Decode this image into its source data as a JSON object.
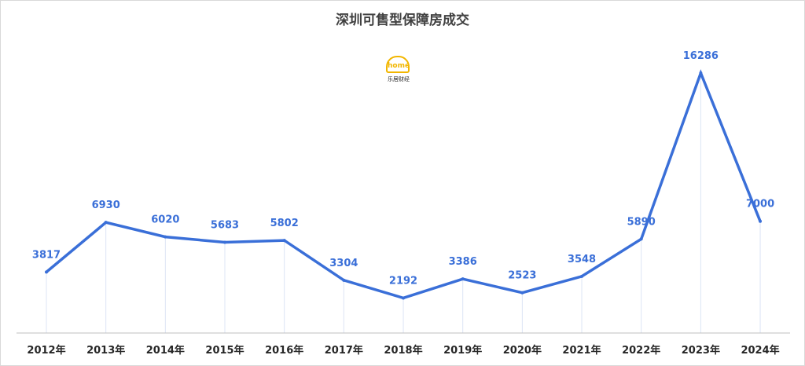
{
  "chart_data": {
    "type": "line",
    "title": "深圳可售型保障房成交",
    "categories": [
      "2012年",
      "2013年",
      "2014年",
      "2015年",
      "2016年",
      "2017年",
      "2018年",
      "2019年",
      "2020年",
      "2021年",
      "2022年",
      "2023年",
      "2024年"
    ],
    "series": [
      {
        "values": [
          3817,
          6930,
          6020,
          5683,
          5802,
          3304,
          2192,
          3386,
          2523,
          3548,
          5890,
          16286,
          7000
        ],
        "labels": [
          "3817",
          "6930",
          "6020",
          "5683",
          "5802",
          "3304",
          "2192",
          "3386",
          "2523",
          "3548",
          "5890",
          "16286",
          "7000"
        ],
        "color": "#3a6fd8"
      }
    ],
    "ylim": [
      0,
      17500
    ],
    "grid": false,
    "drop_lines": true,
    "legend": "none"
  },
  "logo": {
    "icon": "home-house-icon",
    "mark": "home",
    "caption": "乐居财经"
  },
  "colors": {
    "line": "#3a6fd8",
    "label": "#3a6fd8",
    "axis": "#bfbfbf",
    "drop_line": "#dce4f5"
  }
}
